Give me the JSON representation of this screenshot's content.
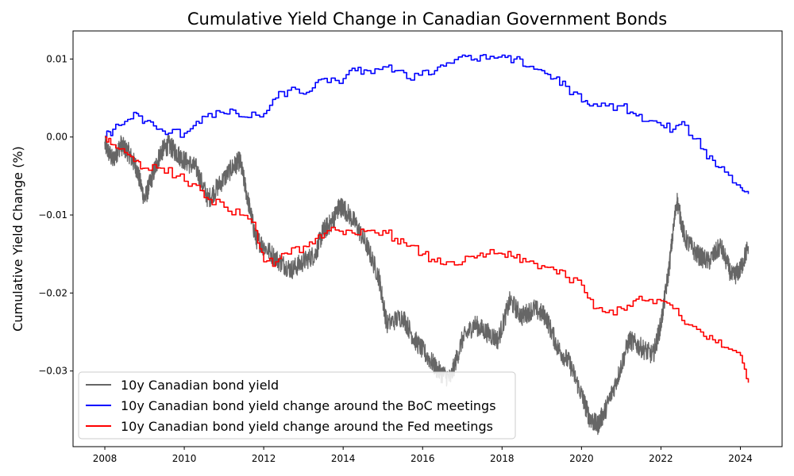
{
  "chart_data": {
    "type": "line",
    "title": "Cumulative Yield Change in Canadian Government Bonds",
    "xlabel": "",
    "ylabel": "Cumulative Yield Change (%)",
    "xlim": [
      2007.2,
      2025.05
    ],
    "ylim": [
      -0.0397,
      0.0136
    ],
    "xticks": [
      2008,
      2010,
      2012,
      2014,
      2016,
      2018,
      2020,
      2022,
      2024
    ],
    "yticks": [
      0.01,
      0.0,
      -0.01,
      -0.02,
      -0.03
    ],
    "ytick_labels": [
      "0.01",
      "0.00",
      "−0.01",
      "−0.02",
      "−0.03"
    ],
    "grid": false,
    "legend_position": "lower-left",
    "series": [
      {
        "name": "10y Canadian bond yield",
        "color": "#666666",
        "style": "noisy",
        "x": [
          2008.0,
          2008.2,
          2008.4,
          2008.6,
          2008.8,
          2009.0,
          2009.2,
          2009.4,
          2009.6,
          2009.8,
          2010.0,
          2010.3,
          2010.6,
          2010.9,
          2011.2,
          2011.4,
          2011.6,
          2011.8,
          2012.0,
          2012.4,
          2012.7,
          2013.0,
          2013.3,
          2013.5,
          2013.7,
          2013.9,
          2014.0,
          2014.3,
          2014.6,
          2014.9,
          2015.1,
          2015.5,
          2015.8,
          2016.1,
          2016.4,
          2016.7,
          2017.0,
          2017.3,
          2017.6,
          2017.9,
          2018.2,
          2018.5,
          2018.8,
          2019.1,
          2019.4,
          2019.7,
          2020.0,
          2020.2,
          2020.4,
          2020.6,
          2020.9,
          2021.2,
          2021.5,
          2021.8,
          2022.0,
          2022.2,
          2022.4,
          2022.6,
          2022.9,
          2023.2,
          2023.5,
          2023.8,
          2024.0,
          2024.2
        ],
        "y": [
          -0.001,
          -0.003,
          -0.001,
          -0.002,
          -0.004,
          -0.008,
          -0.005,
          -0.002,
          -0.001,
          -0.002,
          -0.003,
          -0.004,
          -0.008,
          -0.006,
          -0.004,
          -0.003,
          -0.008,
          -0.013,
          -0.014,
          -0.016,
          -0.017,
          -0.016,
          -0.015,
          -0.012,
          -0.011,
          -0.009,
          -0.009,
          -0.011,
          -0.014,
          -0.018,
          -0.024,
          -0.023,
          -0.026,
          -0.028,
          -0.03,
          -0.031,
          -0.026,
          -0.024,
          -0.025,
          -0.026,
          -0.021,
          -0.023,
          -0.022,
          -0.023,
          -0.027,
          -0.029,
          -0.033,
          -0.036,
          -0.037,
          -0.035,
          -0.031,
          -0.026,
          -0.027,
          -0.028,
          -0.024,
          -0.017,
          -0.008,
          -0.013,
          -0.015,
          -0.016,
          -0.014,
          -0.018,
          -0.017,
          -0.014
        ]
      },
      {
        "name": "10y Canadian bond yield change around the BoC meetings",
        "color": "#0000ff",
        "style": "step",
        "x": [
          2008.0,
          2008.2,
          2008.5,
          2008.8,
          2009.0,
          2009.3,
          2009.6,
          2010.0,
          2010.3,
          2010.6,
          2011.0,
          2011.3,
          2011.6,
          2012.0,
          2012.3,
          2012.6,
          2013.0,
          2013.3,
          2013.6,
          2014.0,
          2014.3,
          2014.6,
          2015.0,
          2015.3,
          2015.6,
          2016.0,
          2016.3,
          2016.6,
          2017.0,
          2017.3,
          2017.6,
          2018.0,
          2018.3,
          2018.6,
          2019.0,
          2019.3,
          2019.6,
          2020.0,
          2020.2,
          2020.6,
          2021.0,
          2021.3,
          2021.6,
          2022.0,
          2022.3,
          2022.6,
          2023.0,
          2023.3,
          2023.6,
          2024.0,
          2024.2
        ],
        "y": [
          0.0,
          0.001,
          0.002,
          0.003,
          0.002,
          0.001,
          0.0005,
          0.0005,
          0.002,
          0.003,
          0.003,
          0.003,
          0.0025,
          0.003,
          0.005,
          0.006,
          0.0055,
          0.007,
          0.007,
          0.0075,
          0.0085,
          0.0085,
          0.009,
          0.0085,
          0.0075,
          0.0085,
          0.0085,
          0.0095,
          0.0105,
          0.01,
          0.01,
          0.0105,
          0.01,
          0.009,
          0.0085,
          0.0075,
          0.0065,
          0.0045,
          0.004,
          0.004,
          0.004,
          0.003,
          0.002,
          0.0015,
          0.001,
          0.0015,
          -0.0015,
          -0.003,
          -0.0045,
          -0.0065,
          -0.0073
        ]
      },
      {
        "name": "10y Canadian bond yield change around the Fed meetings",
        "color": "#ff0000",
        "style": "step",
        "x": [
          2008.0,
          2008.2,
          2008.5,
          2008.8,
          2009.0,
          2009.4,
          2009.8,
          2010.2,
          2010.6,
          2011.0,
          2011.4,
          2011.8,
          2012.0,
          2012.3,
          2012.6,
          2013.0,
          2013.3,
          2013.6,
          2014.0,
          2014.3,
          2014.6,
          2015.0,
          2015.3,
          2015.6,
          2016.0,
          2016.3,
          2016.6,
          2017.0,
          2017.3,
          2017.6,
          2018.0,
          2018.3,
          2018.6,
          2019.0,
          2019.3,
          2019.6,
          2020.0,
          2020.3,
          2020.6,
          2021.0,
          2021.3,
          2021.6,
          2022.0,
          2022.3,
          2022.6,
          2023.0,
          2023.3,
          2023.6,
          2024.0,
          2024.2
        ],
        "y": [
          0.0,
          -0.001,
          -0.002,
          -0.003,
          -0.004,
          -0.004,
          -0.005,
          -0.006,
          -0.008,
          -0.009,
          -0.01,
          -0.012,
          -0.016,
          -0.016,
          -0.015,
          -0.014,
          -0.013,
          -0.012,
          -0.0125,
          -0.0125,
          -0.012,
          -0.012,
          -0.013,
          -0.014,
          -0.015,
          -0.016,
          -0.016,
          -0.016,
          -0.0155,
          -0.015,
          -0.015,
          -0.0155,
          -0.016,
          -0.0165,
          -0.017,
          -0.018,
          -0.019,
          -0.022,
          -0.0225,
          -0.022,
          -0.021,
          -0.021,
          -0.021,
          -0.022,
          -0.024,
          -0.025,
          -0.026,
          -0.027,
          -0.028,
          -0.0315
        ]
      }
    ]
  }
}
